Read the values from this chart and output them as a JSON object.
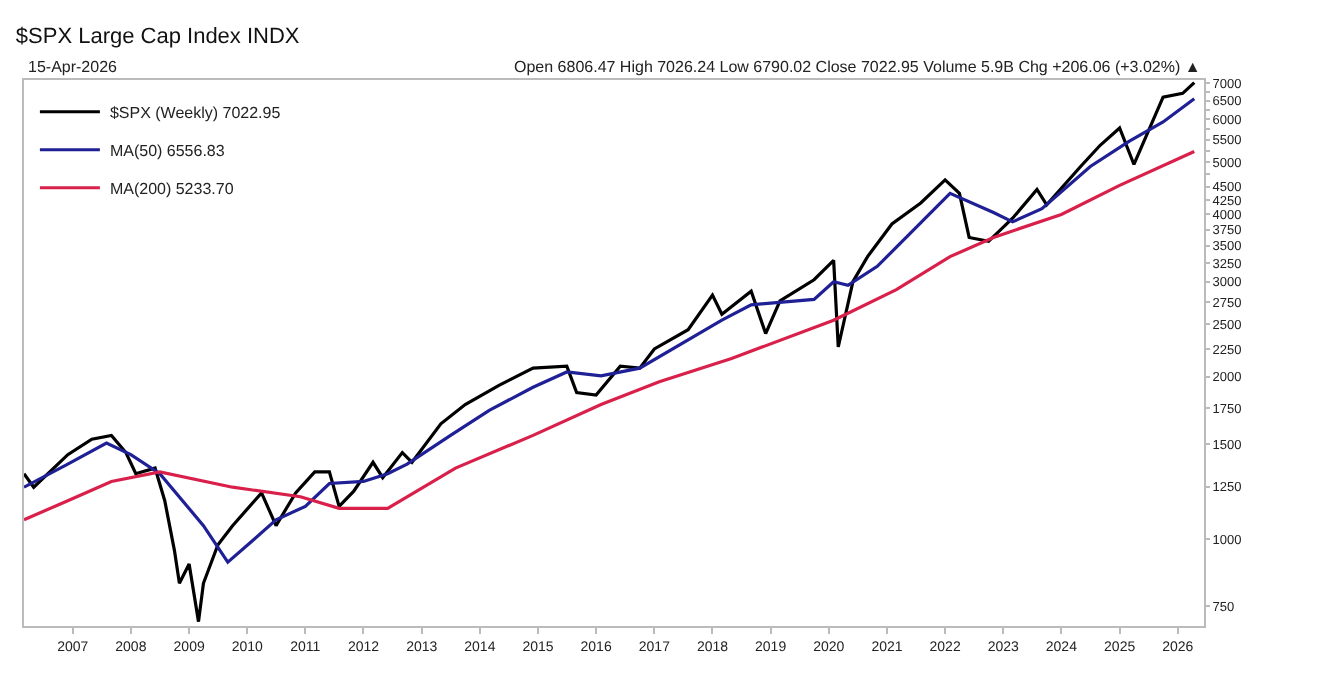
{
  "chart_data": {
    "type": "line",
    "title": "$SPX Large Cap Index INDX",
    "subtitle": "15-Apr-2026",
    "annotations": [
      "Open 6806.47 High 7026.24 Low 6790.02 Close 7022.95 Volume 5.9B Chg +206.06 (+3.02%) ▲"
    ],
    "log": true,
    "grid": false,
    "legend": "top left",
    "marker": "none",
    "line_style": "solid",
    "xlim": [
      "2006-03-01",
      "2026-06-15"
    ],
    "xticks": [
      {
        "value": "2007-01-01",
        "label": "2007"
      },
      {
        "value": "2008-01-01",
        "label": "2008"
      },
      {
        "value": "2009-01-01",
        "label": "2009"
      },
      {
        "value": "2010-01-01",
        "label": "2010"
      },
      {
        "value": "2011-01-01",
        "label": "2011"
      },
      {
        "value": "2012-01-01",
        "label": "2012"
      },
      {
        "value": "2013-01-01",
        "label": "2013"
      },
      {
        "value": "2014-01-01",
        "label": "2014"
      },
      {
        "value": "2015-01-01",
        "label": "2015"
      },
      {
        "value": "2016-01-01",
        "label": "2016"
      },
      {
        "value": "2017-01-01",
        "label": "2017"
      },
      {
        "value": "2018-01-01",
        "label": "2018"
      },
      {
        "value": "2019-01-01",
        "label": "2019"
      },
      {
        "value": "2020-01-01",
        "label": "2020"
      },
      {
        "value": "2021-01-01",
        "label": "2021"
      },
      {
        "value": "2022-01-01",
        "label": "2022"
      },
      {
        "value": "2023-01-01",
        "label": "2023"
      },
      {
        "value": "2024-01-01",
        "label": "2024"
      },
      {
        "value": "2025-01-01",
        "label": "2025"
      },
      {
        "value": "2026-01-01",
        "label": "2026"
      }
    ],
    "ylim": [
      690,
      7100
    ],
    "yticks": [
      750,
      1000,
      1250,
      1500,
      1750,
      2000,
      2250,
      2500,
      2750,
      3000,
      3250,
      3500,
      3750,
      4000,
      4250,
      4500,
      {
        "value": 4750,
        "label": null
      },
      5000,
      {
        "value": 5250,
        "label": null
      },
      5500,
      {
        "value": 5750,
        "label": null
      },
      6000,
      {
        "value": 6250,
        "label": null
      },
      6500,
      {
        "value": 6750,
        "label": null
      },
      7000
    ],
    "series": [
      {
        "name": "$SPX (Weekly) 7022.95",
        "color": "#000000",
        "x": [
          "2006-03",
          "2006-05",
          "2006-12",
          "2007-05",
          "2007-09",
          "2007-12",
          "2008-02",
          "2008-06",
          "2008-08",
          "2008-10",
          "2008-11",
          "2009-01",
          "2009-03",
          "2009-04",
          "2009-07",
          "2009-10",
          "2010-04",
          "2010-07",
          "2010-11",
          "2011-03",
          "2011-06",
          "2011-08",
          "2011-11",
          "2012-03",
          "2012-05",
          "2012-09",
          "2012-11",
          "2013-05",
          "2013-10",
          "2014-05",
          "2014-12",
          "2015-07",
          "2015-09",
          "2016-01",
          "2016-06",
          "2016-10",
          "2017-01",
          "2017-08",
          "2018-01",
          "2018-03",
          "2018-09",
          "2018-12",
          "2019-03",
          "2019-10",
          "2020-02",
          "2020-03",
          "2020-06",
          "2020-09",
          "2021-02",
          "2021-08",
          "2022-01",
          "2022-04",
          "2022-06",
          "2022-10",
          "2023-03",
          "2023-08",
          "2023-10",
          "2024-05",
          "2024-09",
          "2025-01",
          "2025-04",
          "2025-10",
          "2026-02",
          "2026-04-15"
        ],
        "values": [
          1322,
          1248,
          1434,
          1532,
          1557,
          1447,
          1322,
          1354,
          1178,
          952,
          828,
          899,
          703,
          828,
          976,
          1059,
          1218,
          1059,
          1218,
          1332,
          1332,
          1150,
          1227,
          1388,
          1300,
          1447,
          1388,
          1636,
          1776,
          1928,
          2075,
          2092,
          1870,
          1850,
          2092,
          2075,
          2252,
          2445,
          2835,
          2611,
          2882,
          2405,
          2765,
          3026,
          3286,
          2271,
          3001,
          3340,
          3839,
          4201,
          4636,
          4377,
          3625,
          3566,
          3935,
          4449,
          4168,
          4909,
          5373,
          5785,
          4950,
          6597,
          6706,
          7023
        ]
      },
      {
        "name": "MA(50) 6556.83",
        "color": "#1f1f96",
        "x": [
          "2006-03",
          "2006-12",
          "2007-08",
          "2008-01",
          "2008-07",
          "2009-04",
          "2009-09",
          "2010-02",
          "2010-07",
          "2011-01",
          "2011-06",
          "2012-01",
          "2012-06",
          "2012-10",
          "2013-07",
          "2014-03",
          "2014-12",
          "2015-07",
          "2016-02",
          "2016-10",
          "2018-03",
          "2018-09",
          "2019-10",
          "2020-02",
          "2020-05",
          "2020-11",
          "2022-02",
          "2022-11",
          "2023-03",
          "2023-09",
          "2024-07",
          "2025-03",
          "2025-10",
          "2026-04-15"
        ],
        "values": [
          1248,
          1377,
          1507,
          1434,
          1322,
          1059,
          906,
          992,
          1086,
          1150,
          1268,
          1279,
          1322,
          1377,
          1557,
          1733,
          1912,
          2041,
          2008,
          2075,
          2546,
          2719,
          2783,
          3001,
          2955,
          3204,
          4377,
          4032,
          3875,
          4099,
          4909,
          5465,
          5935,
          6556
        ]
      },
      {
        "name": "MA(200) 5233.70",
        "color": "#d8204a",
        "x": [
          "2006-03",
          "2006-12",
          "2007-09",
          "2008-07",
          "2009-10",
          "2010-12",
          "2011-08",
          "2012-06",
          "2013-08",
          "2014-12",
          "2016-02",
          "2017-02",
          "2018-05",
          "2020-02",
          "2021-03",
          "2022-02",
          "2022-11",
          "2024-01",
          "2025-01",
          "2026-04-15"
        ],
        "values": [
          1086,
          1178,
          1279,
          1332,
          1248,
          1198,
          1140,
          1140,
          1354,
          1557,
          1776,
          1958,
          2162,
          2546,
          2901,
          3340,
          3625,
          4000,
          4528,
          5234
        ]
      }
    ]
  }
}
